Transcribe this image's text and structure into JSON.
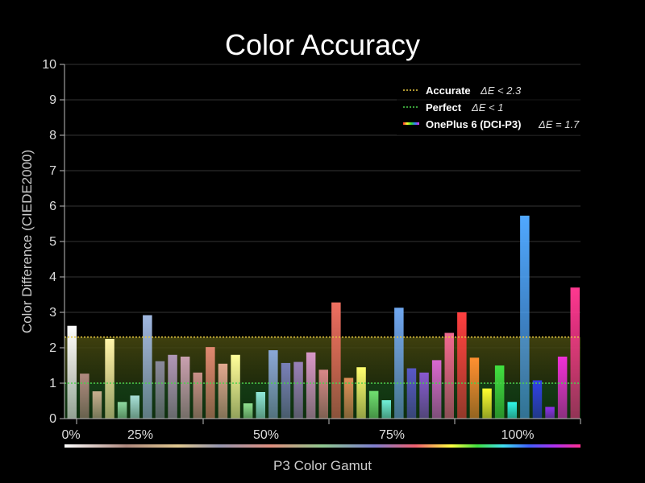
{
  "chart_data": {
    "type": "bar",
    "title": "Color Accuracy",
    "xlabel": "P3 Color Gamut",
    "ylabel": "Color Difference (CIEDE2000)",
    "ylim": [
      0,
      10
    ],
    "yticks": [
      "0",
      "1",
      "2",
      "3",
      "4",
      "5",
      "6",
      "7",
      "8",
      "9",
      "10"
    ],
    "xticks": [
      "0%",
      "25%",
      "50%",
      "75%",
      "100%"
    ],
    "grid": true,
    "legend_position": "top-right",
    "thresholds": [
      {
        "label": "Accurate",
        "condition": "ΔE < 2.3",
        "value": 2.3,
        "color": "#e8c840"
      },
      {
        "label": "Perfect",
        "condition": "ΔE < 1",
        "value": 1.0,
        "color": "#4cd24c"
      }
    ],
    "series": [
      {
        "name": "OnePlus 6 (DCI-P3)",
        "average": "ΔE = 1.7",
        "values": [
          2.62,
          1.27,
          0.77,
          2.25,
          0.47,
          0.65,
          2.92,
          1.62,
          1.8,
          1.75,
          1.3,
          2.02,
          1.55,
          1.8,
          0.43,
          0.75,
          1.93,
          1.57,
          1.6,
          1.87,
          1.38,
          3.28,
          1.15,
          1.45,
          0.78,
          0.52,
          3.13,
          1.42,
          1.3,
          1.65,
          2.42,
          3.0,
          1.72,
          0.85,
          1.5,
          0.47,
          5.73,
          1.08,
          0.33,
          1.75,
          3.7
        ],
        "colors": [
          "#ffffff",
          "#b08a80",
          "#c8b090",
          "#fff4a8",
          "#8ed8a0",
          "#a8e0d8",
          "#a0b8e0",
          "#8a8a9c",
          "#b098b8",
          "#c8a0b0",
          "#c89088",
          "#e08870",
          "#e0a890",
          "#ffff9a",
          "#90e090",
          "#90e8d8",
          "#8aa8d8",
          "#7880b8",
          "#9880b8",
          "#d898c8",
          "#d88888",
          "#f07060",
          "#e09058",
          "#ffff70",
          "#70e070",
          "#70f0d8",
          "#70a8f0",
          "#5858c8",
          "#8858d0",
          "#d868d0",
          "#f06890",
          "#ff4040",
          "#ff9030",
          "#ffff30",
          "#40e040",
          "#30f8e8",
          "#50a8ff",
          "#3040e8",
          "#9030f0",
          "#f030d8",
          "#ff3890"
        ]
      }
    ]
  }
}
